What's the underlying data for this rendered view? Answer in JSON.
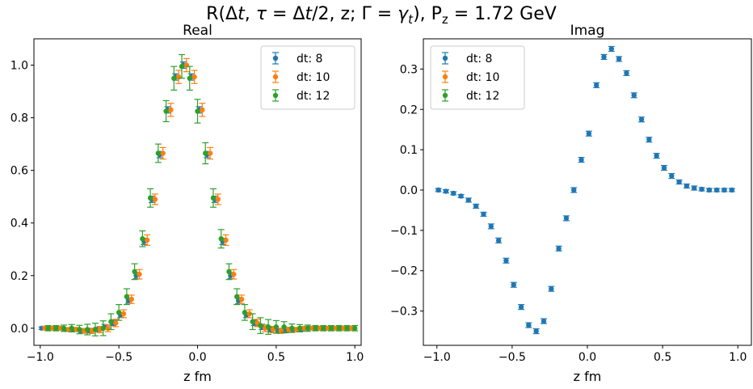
{
  "figure": {
    "suptitle_parts": [
      "R(Δ",
      "t",
      ", ",
      "τ",
      " = Δ",
      "t",
      "/2, z; Γ = ",
      "γ",
      "t",
      "), P",
      "z",
      " = 1.72 GeV"
    ]
  },
  "colors": {
    "dt8": "#1f77b4",
    "dt10": "#ff7f0e",
    "dt12": "#2ca02c"
  },
  "chart_data": [
    {
      "type": "scatter",
      "title": "Real",
      "xlabel": "z fm",
      "ylabel": "",
      "xlim": [
        -1.04,
        1.04
      ],
      "ylim": [
        -0.065,
        1.1
      ],
      "xticks": [
        -1.0,
        -0.5,
        0.0,
        0.5,
        1.0
      ],
      "xtick_labels": [
        "−1.0",
        "−0.5",
        "0.0",
        "0.5",
        "1.0"
      ],
      "yticks": [
        0.0,
        0.2,
        0.4,
        0.6,
        0.8,
        1.0
      ],
      "ytick_labels": [
        "0.0",
        "0.2",
        "0.4",
        "0.6",
        "0.8",
        "1.0"
      ],
      "grid": false,
      "legend_position": "top-right",
      "series": [
        {
          "name": "dt: 8",
          "color": "#1f77b4",
          "x": [
            -0.99,
            -0.94,
            -0.89,
            -0.84,
            -0.79,
            -0.74,
            -0.69,
            -0.64,
            -0.59,
            -0.54,
            -0.49,
            -0.44,
            -0.39,
            -0.34,
            -0.29,
            -0.24,
            -0.19,
            -0.14,
            -0.09,
            -0.04,
            0.01,
            0.06,
            0.11,
            0.16,
            0.21,
            0.26,
            0.31,
            0.36,
            0.41,
            0.46,
            0.51,
            0.56,
            0.61,
            0.66,
            0.71,
            0.76,
            0.81,
            0.86,
            0.91,
            0.96
          ],
          "y": [
            0.0,
            0.0,
            0.0,
            -0.005,
            -0.005,
            -0.01,
            -0.01,
            -0.005,
            0.005,
            0.02,
            0.05,
            0.105,
            0.2,
            0.33,
            0.49,
            0.66,
            0.83,
            0.955,
            1.0,
            0.955,
            0.83,
            0.66,
            0.49,
            0.33,
            0.2,
            0.105,
            0.05,
            0.02,
            0.005,
            -0.005,
            -0.01,
            -0.01,
            -0.005,
            -0.005,
            0.0,
            0.0,
            0.0,
            0.0,
            0.0,
            0.0
          ],
          "err": [
            0.005,
            0.005,
            0.005,
            0.005,
            0.006,
            0.006,
            0.007,
            0.008,
            0.009,
            0.01,
            0.01,
            0.01,
            0.012,
            0.012,
            0.012,
            0.012,
            0.012,
            0.012,
            0.012,
            0.012,
            0.012,
            0.012,
            0.012,
            0.012,
            0.012,
            0.012,
            0.01,
            0.01,
            0.01,
            0.009,
            0.008,
            0.007,
            0.006,
            0.006,
            0.005,
            0.005,
            0.005,
            0.005,
            0.005,
            0.005
          ]
        },
        {
          "name": "dt: 10",
          "color": "#ff7f0e",
          "x": [
            -0.97,
            -0.92,
            -0.87,
            -0.82,
            -0.77,
            -0.72,
            -0.67,
            -0.62,
            -0.57,
            -0.52,
            -0.47,
            -0.42,
            -0.37,
            -0.32,
            -0.27,
            -0.22,
            -0.17,
            -0.12,
            -0.07,
            -0.02,
            0.03,
            0.08,
            0.13,
            0.18,
            0.23,
            0.28,
            0.33,
            0.38,
            0.43,
            0.48,
            0.53,
            0.58,
            0.63,
            0.68,
            0.73,
            0.78,
            0.83,
            0.88,
            0.93,
            0.98
          ],
          "y": [
            0.0,
            0.0,
            0.0,
            -0.005,
            -0.005,
            -0.01,
            -0.01,
            -0.005,
            0.0,
            0.02,
            0.055,
            0.11,
            0.205,
            0.335,
            0.49,
            0.665,
            0.83,
            0.955,
            1.0,
            0.955,
            0.83,
            0.665,
            0.49,
            0.335,
            0.205,
            0.11,
            0.055,
            0.02,
            0.0,
            -0.005,
            -0.01,
            -0.005,
            -0.005,
            0.0,
            0.0,
            0.0,
            0.0,
            0.0,
            0.0,
            0.0
          ],
          "err": [
            0.006,
            0.006,
            0.006,
            0.007,
            0.008,
            0.009,
            0.01,
            0.012,
            0.013,
            0.014,
            0.015,
            0.016,
            0.018,
            0.02,
            0.02,
            0.022,
            0.025,
            0.025,
            0.025,
            0.025,
            0.025,
            0.022,
            0.02,
            0.02,
            0.018,
            0.016,
            0.015,
            0.014,
            0.013,
            0.012,
            0.01,
            0.009,
            0.008,
            0.007,
            0.006,
            0.006,
            0.006,
            0.006,
            0.006,
            0.006
          ]
        },
        {
          "name": "dt: 12",
          "color": "#2ca02c",
          "x": [
            -0.95,
            -0.9,
            -0.85,
            -0.8,
            -0.75,
            -0.7,
            -0.65,
            -0.6,
            -0.55,
            -0.5,
            -0.45,
            -0.4,
            -0.35,
            -0.3,
            -0.25,
            -0.2,
            -0.15,
            -0.1,
            -0.05,
            0.0,
            0.05,
            0.1,
            0.15,
            0.2,
            0.25,
            0.3,
            0.35,
            0.4,
            0.45,
            0.5,
            0.55,
            0.6,
            0.65,
            0.7,
            0.75,
            0.8,
            0.85,
            0.9,
            0.95,
            1.0
          ],
          "y": [
            0.0,
            0.0,
            0.0,
            0.0,
            -0.005,
            -0.005,
            -0.005,
            0.0,
            0.025,
            0.06,
            0.12,
            0.215,
            0.34,
            0.495,
            0.665,
            0.825,
            0.95,
            0.995,
            0.95,
            0.825,
            0.665,
            0.495,
            0.34,
            0.215,
            0.12,
            0.06,
            0.025,
            0.01,
            0.005,
            0.005,
            0.005,
            0.0,
            0.0,
            0.0,
            0.0,
            0.0,
            0.0,
            0.0,
            0.0,
            0.0
          ],
          "err": [
            0.01,
            0.01,
            0.012,
            0.014,
            0.016,
            0.02,
            0.024,
            0.028,
            0.03,
            0.03,
            0.03,
            0.03,
            0.03,
            0.035,
            0.035,
            0.04,
            0.045,
            0.045,
            0.045,
            0.045,
            0.04,
            0.035,
            0.035,
            0.03,
            0.03,
            0.03,
            0.03,
            0.03,
            0.028,
            0.024,
            0.02,
            0.016,
            0.014,
            0.012,
            0.01,
            0.01,
            0.01,
            0.01,
            0.01,
            0.01
          ]
        }
      ]
    },
    {
      "type": "scatter",
      "title": "Imag",
      "xlabel": "z fm",
      "ylabel": "",
      "xlim": [
        -1.09,
        1.09
      ],
      "ylim": [
        -0.385,
        0.375
      ],
      "xticks": [
        -1.0,
        -0.5,
        0.0,
        0.5,
        1.0
      ],
      "xtick_labels": [
        "−1.0",
        "−0.5",
        "0.0",
        "0.5",
        "1.0"
      ],
      "yticks": [
        -0.3,
        -0.2,
        -0.1,
        0.0,
        0.1,
        0.2,
        0.3
      ],
      "ytick_labels": [
        "−0.3",
        "−0.2",
        "−0.1",
        "0.0",
        "0.1",
        "0.2",
        "0.3"
      ],
      "grid": false,
      "legend_position": "top-left",
      "series": [
        {
          "name": "dt: 8",
          "color": "#1f77b4",
          "x": [
            -0.99,
            -0.94,
            -0.89,
            -0.84,
            -0.79,
            -0.74,
            -0.69,
            -0.64,
            -0.59,
            -0.54,
            -0.49,
            -0.44,
            -0.39,
            -0.34,
            -0.29,
            -0.24,
            -0.19,
            -0.14,
            -0.09,
            -0.04,
            0.01,
            0.06,
            0.11,
            0.16,
            0.21,
            0.26,
            0.31,
            0.36,
            0.41,
            0.46,
            0.51,
            0.56,
            0.61,
            0.66,
            0.71,
            0.76,
            0.81,
            0.86,
            0.91,
            0.96
          ],
          "y": [
            0.0,
            -0.003,
            -0.008,
            -0.015,
            -0.025,
            -0.04,
            -0.06,
            -0.09,
            -0.125,
            -0.175,
            -0.235,
            -0.29,
            -0.335,
            -0.35,
            -0.325,
            -0.245,
            -0.145,
            -0.07,
            0.0,
            0.075,
            0.14,
            0.26,
            0.33,
            0.35,
            0.325,
            0.29,
            0.235,
            0.175,
            0.125,
            0.085,
            0.055,
            0.035,
            0.02,
            0.01,
            0.005,
            0.002,
            0.0,
            0.0,
            0.0,
            0.0
          ],
          "err": [
            0.004,
            0.004,
            0.004,
            0.004,
            0.005,
            0.005,
            0.005,
            0.006,
            0.006,
            0.006,
            0.006,
            0.006,
            0.006,
            0.006,
            0.006,
            0.006,
            0.006,
            0.006,
            0.006,
            0.006,
            0.006,
            0.006,
            0.006,
            0.006,
            0.006,
            0.006,
            0.006,
            0.006,
            0.006,
            0.006,
            0.006,
            0.006,
            0.005,
            0.005,
            0.005,
            0.004,
            0.004,
            0.004,
            0.004,
            0.004
          ]
        }
      ]
    }
  ]
}
